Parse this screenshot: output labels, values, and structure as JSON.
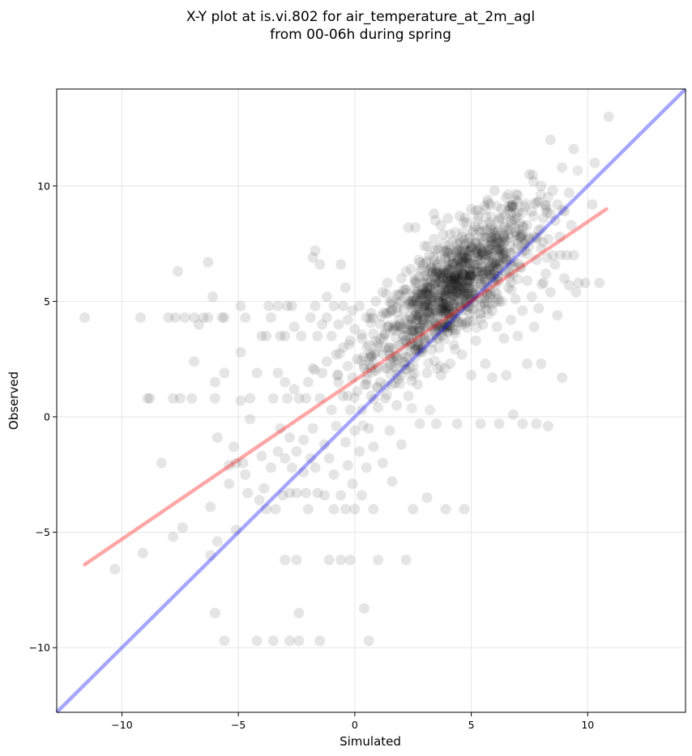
{
  "chart_data": {
    "type": "scatter",
    "title_line1": "X-Y plot at is.vi.802 for air_temperature_at_2m_agl",
    "title_line2": "from 00-06h during spring",
    "xlabel": "Simulated",
    "ylabel": "Observed",
    "xlim": [
      -12.8,
      14.2
    ],
    "ylim": [
      -12.8,
      14.2
    ],
    "xticks": [
      -10,
      -5,
      0,
      5,
      10
    ],
    "yticks": [
      -10,
      -5,
      0,
      5,
      10
    ],
    "xtick_labels": [
      "−10",
      "−5",
      "0",
      "5",
      "10"
    ],
    "ytick_labels": [
      "−10",
      "−5",
      "0",
      "5",
      "10"
    ],
    "grid": true,
    "point_color": "#000000",
    "points_cluster_center": [
      4.2,
      5.5
    ],
    "identity_line": {
      "x": [
        -12.8,
        14.2
      ],
      "y": [
        -12.8,
        14.2
      ],
      "color": "#0000ff"
    },
    "regression_line": {
      "x": [
        -11.6,
        10.8
      ],
      "y": [
        -6.4,
        9.0
      ],
      "color": "#ff0000"
    },
    "points": [
      [
        -11.6,
        4.3
      ],
      [
        -10.3,
        -6.6
      ],
      [
        -9.2,
        4.3
      ],
      [
        -9.1,
        -5.9
      ],
      [
        -8.9,
        0.8
      ],
      [
        -8.8,
        0.8
      ],
      [
        -8.3,
        -2.0
      ],
      [
        -8.0,
        4.3
      ],
      [
        -7.8,
        0.8
      ],
      [
        -7.8,
        -5.2
      ],
      [
        -7.7,
        4.3
      ],
      [
        -7.6,
        6.3
      ],
      [
        -7.5,
        0.8
      ],
      [
        -7.4,
        -4.8
      ],
      [
        -7.3,
        4.3
      ],
      [
        -7.0,
        0.8
      ],
      [
        -6.9,
        4.3
      ],
      [
        -6.9,
        2.4
      ],
      [
        -6.7,
        4.0
      ],
      [
        -6.5,
        4.3
      ],
      [
        -6.3,
        6.7
      ],
      [
        -6.3,
        4.3
      ],
      [
        -6.2,
        -3.9
      ],
      [
        -6.2,
        -6.0
      ],
      [
        -6.1,
        5.2
      ],
      [
        -6.0,
        1.5
      ],
      [
        -6.0,
        0.8
      ],
      [
        -6.0,
        -8.5
      ],
      [
        -5.9,
        -0.9
      ],
      [
        -5.9,
        -5.4
      ],
      [
        -5.7,
        4.3
      ],
      [
        -5.6,
        4.3
      ],
      [
        -5.6,
        1.9
      ],
      [
        -5.6,
        -9.7
      ],
      [
        -5.4,
        -2.1
      ],
      [
        -5.4,
        -2.9
      ],
      [
        -5.2,
        -1.3
      ],
      [
        -5.1,
        -4.9
      ],
      [
        -5.1,
        -2.0
      ],
      [
        -4.9,
        4.8
      ],
      [
        -4.9,
        2.8
      ],
      [
        -4.9,
        0.7
      ],
      [
        -4.8,
        -2.0
      ],
      [
        -4.7,
        4.3
      ],
      [
        -4.7,
        -2.5
      ],
      [
        -4.6,
        -3.3
      ],
      [
        -4.5,
        0.8
      ],
      [
        -4.5,
        -0.1
      ],
      [
        -4.2,
        1.9
      ],
      [
        -4.2,
        -9.7
      ],
      [
        -4.1,
        -3.6
      ],
      [
        -4.0,
        3.5
      ],
      [
        -4.0,
        -1.7
      ],
      [
        -3.9,
        -3.1
      ],
      [
        -3.8,
        3.5
      ],
      [
        -3.8,
        -4.0
      ],
      [
        -3.7,
        4.8
      ],
      [
        -3.6,
        4.3
      ],
      [
        -3.6,
        -2.2
      ],
      [
        -3.5,
        0.8
      ],
      [
        -3.5,
        -9.7
      ],
      [
        -3.4,
        -4.0
      ],
      [
        -3.3,
        4.8
      ],
      [
        -3.3,
        1.9
      ],
      [
        -3.3,
        -1.5
      ],
      [
        -3.2,
        3.5
      ],
      [
        -3.2,
        -0.5
      ],
      [
        -3.1,
        -3.4
      ],
      [
        -3.0,
        3.5
      ],
      [
        -3.0,
        1.5
      ],
      [
        -3.0,
        -1.8
      ],
      [
        -3.0,
        -6.2
      ],
      [
        -2.9,
        4.8
      ],
      [
        -2.9,
        0.8
      ],
      [
        -2.8,
        -0.9
      ],
      [
        -2.8,
        -3.3
      ],
      [
        -2.8,
        -9.7
      ],
      [
        -2.7,
        4.8
      ],
      [
        -2.7,
        -2.2
      ],
      [
        -2.6,
        3.9
      ],
      [
        -2.6,
        1.2
      ],
      [
        -2.5,
        -1.5
      ],
      [
        -2.5,
        -3.3
      ],
      [
        -2.5,
        -6.2
      ],
      [
        -2.4,
        0.8
      ],
      [
        -2.4,
        -8.5
      ],
      [
        -2.4,
        -9.7
      ],
      [
        -2.3,
        3.5
      ],
      [
        -2.2,
        -1.0
      ],
      [
        -2.2,
        -2.4
      ],
      [
        -2.1,
        0.8
      ],
      [
        -2.1,
        -3.3
      ],
      [
        -2.0,
        1.5
      ],
      [
        -2.0,
        -4.0
      ],
      [
        -1.9,
        4.3
      ],
      [
        -1.9,
        -1.8
      ],
      [
        -1.8,
        6.9
      ],
      [
        -1.8,
        2.1
      ],
      [
        -1.8,
        -0.5
      ],
      [
        -1.7,
        7.2
      ],
      [
        -1.7,
        4.8
      ],
      [
        -1.7,
        -2.2
      ],
      [
        -1.6,
        3.5
      ],
      [
        -1.6,
        -3.3
      ],
      [
        -1.5,
        6.6
      ],
      [
        -1.5,
        0.8
      ],
      [
        -1.5,
        -9.7
      ],
      [
        -1.4,
        4.0
      ],
      [
        -1.4,
        1.9
      ],
      [
        -1.3,
        -1.2
      ],
      [
        -1.3,
        -3.4
      ],
      [
        -1.2,
        5.2
      ],
      [
        -1.2,
        4.3
      ],
      [
        -1.2,
        2.4
      ],
      [
        -1.1,
        -1.8
      ],
      [
        -1.1,
        -6.2
      ],
      [
        -1.0,
        3.5
      ],
      [
        -1.0,
        0.3
      ],
      [
        -0.9,
        4.8
      ],
      [
        -0.9,
        -2.5
      ],
      [
        -0.9,
        -4.0
      ],
      [
        -0.8,
        2.7
      ],
      [
        -0.8,
        -0.4
      ],
      [
        -0.7,
        4.0
      ],
      [
        -0.7,
        1.5
      ],
      [
        -0.6,
        6.6
      ],
      [
        -0.6,
        -3.4
      ],
      [
        -0.6,
        -6.2
      ],
      [
        -0.5,
        4.8
      ],
      [
        -0.5,
        3.0
      ],
      [
        -0.5,
        0.9
      ],
      [
        -0.4,
        5.6
      ],
      [
        -0.4,
        -1.1
      ],
      [
        -0.4,
        -4.0
      ],
      [
        -0.3,
        4.2
      ],
      [
        -0.3,
        2.2
      ],
      [
        -0.3,
        -2.1
      ],
      [
        -0.2,
        3.3
      ],
      [
        -0.2,
        0.3
      ],
      [
        -0.2,
        -6.2
      ],
      [
        -0.1,
        4.6
      ],
      [
        -0.1,
        1.7
      ],
      [
        -0.1,
        -2.9
      ],
      [
        0.0,
        3.8
      ],
      [
        0.0,
        -0.6
      ],
      [
        0.0,
        -4.0
      ],
      [
        0.1,
        2.5
      ],
      [
        0.1,
        1.1
      ],
      [
        0.2,
        4.8
      ],
      [
        0.2,
        -1.5
      ],
      [
        0.3,
        3.4
      ],
      [
        0.3,
        0.3
      ],
      [
        0.3,
        -3.4
      ],
      [
        0.4,
        2.1
      ],
      [
        0.4,
        -8.3
      ],
      [
        0.5,
        4.3
      ],
      [
        0.5,
        1.4
      ],
      [
        0.5,
        -2.2
      ],
      [
        0.6,
        3.1
      ],
      [
        0.6,
        -0.5
      ],
      [
        0.6,
        -9.7
      ],
      [
        0.7,
        4.5
      ],
      [
        0.7,
        2.6
      ],
      [
        0.7,
        0.9
      ],
      [
        0.8,
        3.6
      ],
      [
        0.8,
        -1.3
      ],
      [
        0.8,
        -4.0
      ],
      [
        0.9,
        5.0
      ],
      [
        0.9,
        2.0
      ],
      [
        1.0,
        3.2
      ],
      [
        1.0,
        0.4
      ],
      [
        1.0,
        -6.2
      ],
      [
        1.1,
        4.0
      ],
      [
        1.1,
        1.5
      ],
      [
        1.2,
        5.4
      ],
      [
        1.2,
        2.7
      ],
      [
        1.2,
        -2.0
      ],
      [
        1.3,
        3.6
      ],
      [
        1.3,
        0.8
      ],
      [
        1.4,
        5.8
      ],
      [
        1.4,
        4.5
      ],
      [
        1.4,
        2.1
      ],
      [
        1.5,
        3.0
      ],
      [
        1.5,
        -0.6
      ],
      [
        1.6,
        4.9
      ],
      [
        1.6,
        1.4
      ],
      [
        1.6,
        -2.8
      ],
      [
        1.7,
        3.8
      ],
      [
        1.7,
        2.4
      ],
      [
        1.8,
        5.3
      ],
      [
        1.8,
        0.5
      ],
      [
        1.9,
        4.2
      ],
      [
        1.9,
        3.1
      ],
      [
        2.0,
        6.0
      ],
      [
        2.0,
        1.8
      ],
      [
        2.0,
        -1.2
      ],
      [
        2.1,
        4.6
      ],
      [
        2.1,
        3.5
      ],
      [
        2.2,
        5.5
      ],
      [
        2.2,
        2.6
      ],
      [
        2.2,
        -6.2
      ],
      [
        2.3,
        8.2
      ],
      [
        2.3,
        4.0
      ],
      [
        2.3,
        0.9
      ],
      [
        2.4,
        6.4
      ],
      [
        2.4,
        3.2
      ],
      [
        2.5,
        5.0
      ],
      [
        2.5,
        2.2
      ],
      [
        2.5,
        -4.0
      ],
      [
        2.6,
        8.2
      ],
      [
        2.6,
        5.9
      ],
      [
        2.6,
        4.4
      ],
      [
        2.7,
        3.7
      ],
      [
        2.7,
        1.4
      ],
      [
        2.8,
        6.7
      ],
      [
        2.8,
        5.3
      ],
      [
        2.8,
        -0.3
      ],
      [
        2.9,
        4.8
      ],
      [
        2.9,
        2.8
      ],
      [
        3.0,
        7.4
      ],
      [
        3.0,
        6.1
      ],
      [
        3.0,
        3.9
      ],
      [
        3.1,
        5.6
      ],
      [
        3.1,
        1.9
      ],
      [
        3.1,
        -3.5
      ],
      [
        3.2,
        7.0
      ],
      [
        3.2,
        4.5
      ],
      [
        3.3,
        6.5
      ],
      [
        3.3,
        5.2
      ],
      [
        3.3,
        2.9
      ],
      [
        3.4,
        8.8
      ],
      [
        3.4,
        7.7
      ],
      [
        3.4,
        4.1
      ],
      [
        3.5,
        6.2
      ],
      [
        3.5,
        5.8
      ],
      [
        3.5,
        -0.3
      ],
      [
        3.6,
        7.3
      ],
      [
        3.6,
        5.0
      ],
      [
        3.6,
        3.4
      ],
      [
        3.7,
        8.3
      ],
      [
        3.7,
        6.8
      ],
      [
        3.7,
        1.8
      ],
      [
        3.8,
        7.9
      ],
      [
        3.8,
        6.0
      ],
      [
        3.8,
        4.7
      ],
      [
        3.9,
        5.5
      ],
      [
        3.9,
        3.9
      ],
      [
        3.9,
        -4.0
      ],
      [
        4.0,
        8.6
      ],
      [
        4.0,
        7.1
      ],
      [
        4.0,
        6.4
      ],
      [
        4.1,
        5.9
      ],
      [
        4.1,
        4.3
      ],
      [
        4.1,
        2.3
      ],
      [
        4.2,
        7.6
      ],
      [
        4.2,
        6.7
      ],
      [
        4.2,
        5.2
      ],
      [
        4.3,
        8.0
      ],
      [
        4.3,
        6.0
      ],
      [
        4.3,
        3.6
      ],
      [
        4.4,
        7.2
      ],
      [
        4.4,
        5.6
      ],
      [
        4.4,
        -0.3
      ],
      [
        4.5,
        8.7
      ],
      [
        4.5,
        6.5
      ],
      [
        4.5,
        4.8
      ],
      [
        4.6,
        7.8
      ],
      [
        4.6,
        6.2
      ],
      [
        4.6,
        2.7
      ],
      [
        4.7,
        7.4
      ],
      [
        4.7,
        5.4
      ],
      [
        4.7,
        -4.0
      ],
      [
        4.8,
        8.4
      ],
      [
        4.8,
        6.9
      ],
      [
        4.8,
        4.1
      ],
      [
        4.9,
        7.0
      ],
      [
        4.9,
        5.9
      ],
      [
        5.0,
        9.0
      ],
      [
        5.0,
        6.6
      ],
      [
        5.0,
        1.8
      ],
      [
        5.1,
        8.1
      ],
      [
        5.1,
        5.1
      ],
      [
        5.2,
        7.6
      ],
      [
        5.2,
        6.3
      ],
      [
        5.2,
        3.3
      ],
      [
        5.3,
        8.7
      ],
      [
        5.3,
        6.9
      ],
      [
        5.4,
        7.3
      ],
      [
        5.4,
        5.7
      ],
      [
        5.4,
        -0.3
      ],
      [
        5.5,
        8.3
      ],
      [
        5.5,
        6.1
      ],
      [
        5.5,
        4.0
      ],
      [
        5.6,
        7.8
      ],
      [
        5.6,
        2.3
      ],
      [
        5.7,
        9.4
      ],
      [
        5.7,
        7.0
      ],
      [
        5.7,
        5.3
      ],
      [
        5.8,
        8.4
      ],
      [
        5.8,
        6.4
      ],
      [
        5.9,
        7.6
      ],
      [
        5.9,
        4.6
      ],
      [
        5.9,
        1.7
      ],
      [
        6.0,
        9.8
      ],
      [
        6.0,
        8.0
      ],
      [
        6.0,
        6.0
      ],
      [
        6.1,
        7.2
      ],
      [
        6.1,
        3.9
      ],
      [
        6.2,
        8.6
      ],
      [
        6.2,
        6.6
      ],
      [
        6.2,
        -0.3
      ],
      [
        6.3,
        9.0
      ],
      [
        6.3,
        7.4
      ],
      [
        6.3,
        5.0
      ],
      [
        6.4,
        8.2
      ],
      [
        6.4,
        3.4
      ],
      [
        6.5,
        9.5
      ],
      [
        6.5,
        6.8
      ],
      [
        6.5,
        1.8
      ],
      [
        6.6,
        7.9
      ],
      [
        6.6,
        5.6
      ],
      [
        6.7,
        8.8
      ],
      [
        6.7,
        7.1
      ],
      [
        6.7,
        4.2
      ],
      [
        6.8,
        9.1
      ],
      [
        6.8,
        6.2
      ],
      [
        6.8,
        0.1
      ],
      [
        6.9,
        8.0
      ],
      [
        6.9,
        5.1
      ],
      [
        7.0,
        9.6
      ],
      [
        7.0,
        7.5
      ],
      [
        7.0,
        3.5
      ],
      [
        7.1,
        8.4
      ],
      [
        7.1,
        6.5
      ],
      [
        7.2,
        7.9
      ],
      [
        7.2,
        4.6
      ],
      [
        7.2,
        -0.3
      ],
      [
        7.3,
        9.1
      ],
      [
        7.3,
        7.2
      ],
      [
        7.4,
        8.3
      ],
      [
        7.4,
        5.9
      ],
      [
        7.4,
        2.3
      ],
      [
        7.5,
        10.5
      ],
      [
        7.5,
        7.7
      ],
      [
        7.6,
        8.9
      ],
      [
        7.6,
        5.2
      ],
      [
        7.7,
        7.8
      ],
      [
        7.7,
        3.9
      ],
      [
        7.8,
        9.3
      ],
      [
        7.8,
        6.8
      ],
      [
        7.8,
        -0.3
      ],
      [
        7.9,
        8.1
      ],
      [
        7.9,
        4.7
      ],
      [
        8.0,
        10.0
      ],
      [
        8.0,
        7.3
      ],
      [
        8.0,
        2.3
      ],
      [
        8.1,
        8.6
      ],
      [
        8.1,
        5.8
      ],
      [
        8.2,
        9.0
      ],
      [
        8.2,
        6.2
      ],
      [
        8.3,
        7.7
      ],
      [
        8.3,
        -0.4
      ],
      [
        8.4,
        12.0
      ],
      [
        8.4,
        8.8
      ],
      [
        8.4,
        5.4
      ],
      [
        8.5,
        9.8
      ],
      [
        8.5,
        7.0
      ],
      [
        8.6,
        8.5
      ],
      [
        8.6,
        6.6
      ],
      [
        8.7,
        9.2
      ],
      [
        8.7,
        4.4
      ],
      [
        8.8,
        7.8
      ],
      [
        8.9,
        10.8
      ],
      [
        8.9,
        1.7
      ],
      [
        9.0,
        8.9
      ],
      [
        9.0,
        6.0
      ],
      [
        9.1,
        7.0
      ],
      [
        9.2,
        9.7
      ],
      [
        9.2,
        5.7
      ],
      [
        9.3,
        8.3
      ],
      [
        9.4,
        11.6
      ],
      [
        9.4,
        7.0
      ],
      [
        9.5,
        5.4
      ],
      [
        9.6,
        5.8
      ],
      [
        9.9,
        5.8
      ],
      [
        10.2,
        9.2
      ],
      [
        10.3,
        11.0
      ],
      [
        10.5,
        5.8
      ],
      [
        10.9,
        13.0
      ]
    ]
  }
}
